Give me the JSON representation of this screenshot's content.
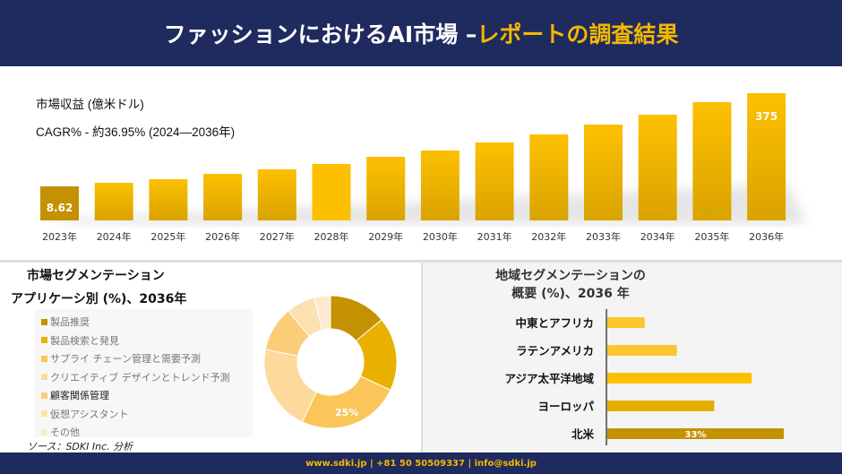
{
  "header": {
    "title_main": "ファッションにおけるAI市場 –",
    "title_highlight": "レポートの調査結果"
  },
  "footer": {
    "text": "www.sdki.jp | +81 50 50509337 | info@sdki.jp"
  },
  "colors": {
    "navy": "#1f2b5e",
    "gold": "#f5b800"
  },
  "chart_data": [
    {
      "type": "bar",
      "title": "市場収益 (億米ドル)",
      "subtitle": "CAGR% - 約36.95% (2024—2036年)",
      "categories": [
        "2023年",
        "2024年",
        "2025年",
        "2026年",
        "2027年",
        "2028年",
        "2029年",
        "2030年",
        "2031年",
        "2032年",
        "2033年",
        "2034年",
        "2035年",
        "2036年"
      ],
      "values": [
        8.62,
        null,
        null,
        null,
        null,
        null,
        null,
        null,
        null,
        null,
        null,
        null,
        null,
        375
      ],
      "data_labels": {
        "0": "8.62",
        "13": "375"
      },
      "grid": false
    },
    {
      "type": "pie",
      "title": "市場セグメンテーション",
      "subtitle": "アプリケーシ別 (%)、2036年",
      "labels": [
        "製品推奨",
        "製品検索と発見",
        "サプライ チェーン管理と需要予測",
        "クリエイティブ デザインとトレンド予測",
        "顧客関係管理",
        "仮想アシスタント",
        "その他"
      ],
      "values": [
        14,
        18,
        25,
        21,
        11,
        7,
        4
      ],
      "colors": [
        "#c49102",
        "#e9b000",
        "#fbc55a",
        "#fdd99c",
        "#fccd78",
        "#fde0b0",
        "#feead0"
      ],
      "data_label": "25%",
      "legend": "left",
      "source": "ソース：SDKI Inc. 分析"
    },
    {
      "type": "bar",
      "orientation": "horizontal",
      "title": "地域セグメンテーションの",
      "title2": "概要 (%)、2036 年",
      "categories": [
        "中東とアフリカ",
        "ラテンアメリカ",
        "アジア太平洋地域",
        "ヨーロッパ",
        "北米"
      ],
      "values": [
        7,
        13,
        27,
        20,
        33
      ],
      "colors": [
        "#fcc62e",
        "#fcc62e",
        "#fdc000",
        "#e5ad00",
        "#c49102"
      ],
      "data_label": "33%"
    }
  ]
}
